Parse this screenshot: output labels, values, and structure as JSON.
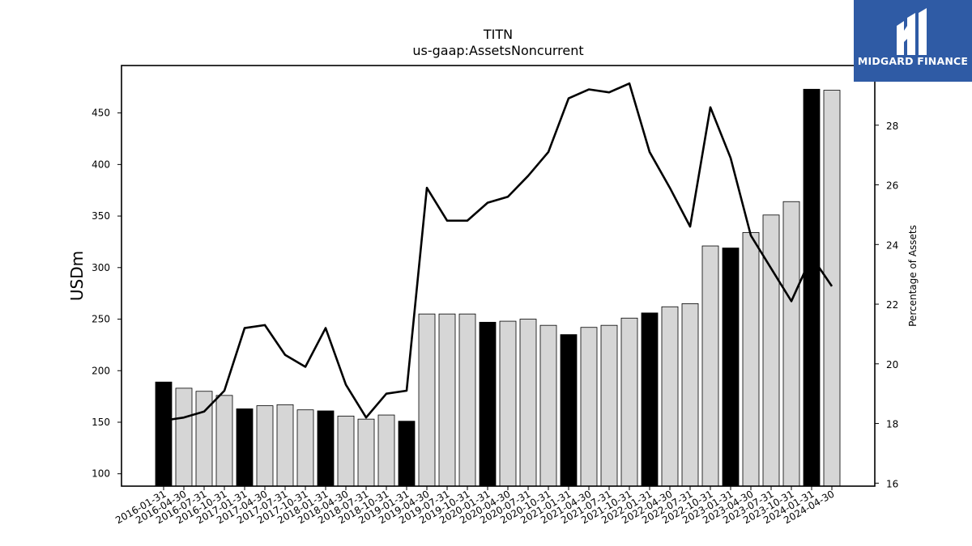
{
  "chart_data": {
    "type": "bar",
    "title": "TITN",
    "subtitle": "us-gaap:AssetsNoncurrent",
    "ylabel": "USDm",
    "y2label": "Percentage of Assets",
    "ylim": [
      88,
      496
    ],
    "y2lim": [
      15.9,
      30.0
    ],
    "yticks": [
      100,
      150,
      200,
      250,
      300,
      350,
      400,
      450
    ],
    "y2ticks": [
      16,
      18,
      20,
      22,
      24,
      26,
      28
    ],
    "categories": [
      "2016-01-31",
      "2016-04-30",
      "2016-07-31",
      "2016-10-31",
      "2017-01-31",
      "2017-04-30",
      "2017-07-31",
      "2017-10-31",
      "2018-01-31",
      "2018-04-30",
      "2018-07-31",
      "2018-10-31",
      "2019-01-31",
      "2019-04-30",
      "2019-07-31",
      "2019-10-31",
      "2020-01-31",
      "2020-04-30",
      "2020-07-31",
      "2020-10-31",
      "2021-01-31",
      "2021-04-30",
      "2021-07-31",
      "2021-10-31",
      "2022-01-31",
      "2022-04-30",
      "2022-07-31",
      "2022-10-31",
      "2023-01-31",
      "2023-04-30",
      "2023-07-31",
      "2023-10-31",
      "2024-01-31",
      "2024-04-30"
    ],
    "series": [
      {
        "type": "bar",
        "values": [
          189,
          183,
          180,
          176,
          163,
          166,
          167,
          162,
          161,
          156,
          153,
          157,
          151,
          255,
          255,
          255,
          247,
          248,
          250,
          244,
          235,
          242,
          244,
          251,
          256,
          262,
          265,
          321,
          319,
          334,
          351,
          364,
          473,
          472
        ],
        "highlight": [
          true,
          false,
          false,
          false,
          true,
          false,
          false,
          false,
          true,
          false,
          false,
          false,
          true,
          false,
          false,
          false,
          true,
          false,
          false,
          false,
          true,
          false,
          false,
          false,
          true,
          false,
          false,
          false,
          true,
          false,
          false,
          false,
          true,
          false
        ],
        "highlight_color": "#000000",
        "color": "#d6d6d6"
      },
      {
        "type": "line",
        "axis": "right",
        "color": "#000000",
        "values": [
          18.1,
          18.2,
          18.4,
          19.1,
          21.2,
          21.3,
          20.3,
          19.9,
          21.2,
          19.3,
          18.2,
          19.0,
          19.1,
          25.9,
          24.8,
          24.8,
          25.4,
          25.6,
          26.3,
          27.1,
          28.9,
          29.2,
          29.1,
          29.4,
          27.1,
          25.9,
          24.6,
          28.6,
          26.9,
          24.3,
          23.2,
          22.1,
          23.6,
          22.6
        ]
      }
    ],
    "grid": false
  },
  "logo": {
    "text": "MIDGARD FINANCE"
  }
}
